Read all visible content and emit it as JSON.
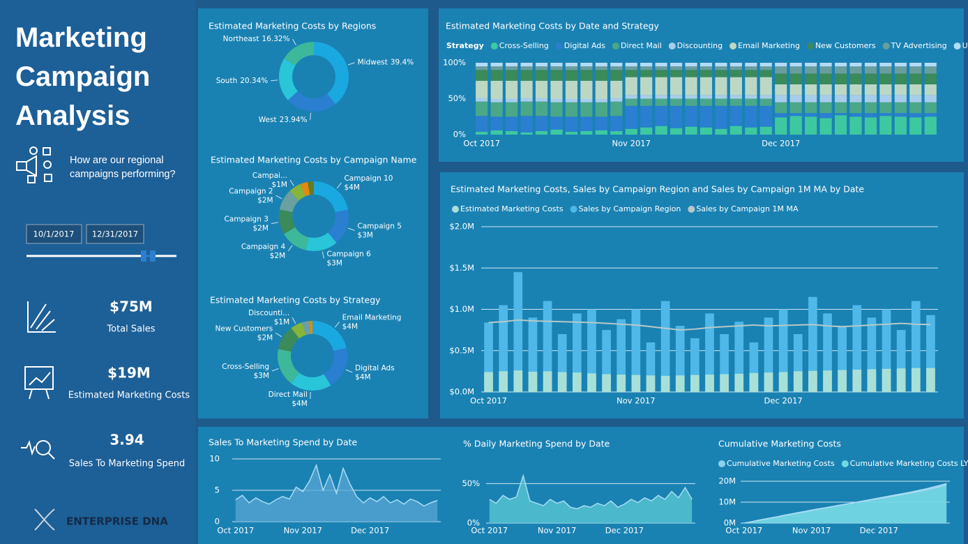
{
  "sidebar": {
    "title": "Marketing Campaign Analysis",
    "question": "How are our regional campaigns performing?",
    "date_range": [
      "10/1/2017",
      "12/31/2017"
    ],
    "kpis": [
      {
        "value": "$75M",
        "label": "Total Sales"
      },
      {
        "value": "$19M",
        "label": "Estimated Marketing Costs"
      },
      {
        "value": "3.94",
        "label": "Sales To Marketing Spend"
      }
    ],
    "logo": "ENTERPRISE DNA"
  },
  "chart_data": [
    {
      "type": "pie",
      "donut": true,
      "title": "Estimated Marketing Costs by Regions",
      "categories": [
        "Midwest",
        "West",
        "South",
        "Northeast"
      ],
      "values": [
        39.4,
        23.94,
        20.34,
        16.32
      ],
      "value_labels": [
        "39.4%",
        "23.94%",
        "20.34%",
        "16.32%"
      ],
      "colors": [
        "#1aa8e0",
        "#2a7fd0",
        "#29c5d8",
        "#3db89a"
      ]
    },
    {
      "type": "pie",
      "donut": true,
      "title": "Estimated Marketing Costs by Campaign Name",
      "categories": [
        "Campaign 10",
        "Campaign 5",
        "Campaign 6",
        "Campaign 4",
        "Campaign 3",
        "Campaign 2",
        "Campai...",
        null,
        null
      ],
      "values": [
        3800000,
        2900000,
        2600000,
        2200000,
        2000000,
        1700000,
        1000000,
        600000,
        500000
      ],
      "value_labels": [
        "$4M",
        "$3M",
        "$3M",
        "$2M",
        "$2M",
        "$2M",
        "$1M",
        null,
        null
      ],
      "colors": [
        "#1aa8e0",
        "#2a7fd0",
        "#29c5d8",
        "#3db89a",
        "#3a8a5a",
        "#6aa0a0",
        "#86b53a",
        "#e08a10",
        "#6a7a20"
      ]
    },
    {
      "type": "pie",
      "donut": true,
      "title": "Estimated Marketing Costs by Strategy",
      "categories": [
        "Email Marketing",
        "Digital Ads",
        "Direct Mail",
        "Cross-Selling",
        "New Customers",
        "Discounti...",
        null,
        null
      ],
      "values": [
        3900000,
        3600000,
        3500000,
        3200000,
        2100000,
        1000000,
        600000,
        300000
      ],
      "value_labels": [
        "$4M",
        "$4M",
        "$4M",
        "$3M",
        "$2M",
        "$1M",
        null,
        null
      ],
      "colors": [
        "#1aa8e0",
        "#2a7fd0",
        "#29c5d8",
        "#3db89a",
        "#3a8a5a",
        "#86b53a",
        "#6aa0a0",
        "#e08a10"
      ]
    },
    {
      "type": "bar",
      "stacked": "percent",
      "title": "Estimated Marketing Costs by Date and Strategy",
      "legend_title": "Strategy",
      "categories": [
        "Oct 2017",
        null,
        null,
        null,
        null,
        null,
        null,
        null,
        null,
        null,
        "Nov 2017",
        null,
        null,
        null,
        null,
        null,
        null,
        null,
        null,
        null,
        "Dec 2017",
        null,
        null,
        null,
        null,
        null,
        null,
        null,
        null,
        null,
        null
      ],
      "ylim": [
        0,
        100
      ],
      "yticks": [
        {
          "value": 0,
          "label": "0%"
        },
        {
          "value": 50,
          "label": "50%"
        },
        {
          "value": 100,
          "label": "100%"
        }
      ],
      "grid": false,
      "series": [
        {
          "name": "Cross-Selling",
          "color": "#3ec8a0",
          "values": [
            4,
            6,
            5,
            3,
            5,
            7,
            4,
            5,
            6,
            5,
            8,
            10,
            12,
            9,
            11,
            10,
            8,
            12,
            10,
            11,
            24,
            26,
            25,
            23,
            27,
            25,
            24,
            26,
            25,
            24,
            25
          ]
        },
        {
          "name": "Digital Ads",
          "color": "#2a7fd0",
          "values": [
            22,
            19,
            20,
            23,
            21,
            18,
            21,
            20,
            19,
            21,
            32,
            30,
            28,
            31,
            29,
            30,
            32,
            28,
            30,
            29,
            6,
            4,
            5,
            7,
            3,
            5,
            6,
            4,
            5,
            6,
            5
          ]
        },
        {
          "name": "Direct Mail",
          "color": "#4aa888",
          "values": [
            20,
            20,
            20,
            20,
            20,
            20,
            20,
            20,
            20,
            20,
            10,
            10,
            10,
            10,
            10,
            10,
            10,
            10,
            10,
            10,
            15,
            15,
            15,
            15,
            15,
            15,
            15,
            15,
            15,
            15,
            15
          ]
        },
        {
          "name": "Discounting",
          "color": "#a8cdea",
          "values": [
            5,
            5,
            5,
            5,
            5,
            5,
            5,
            5,
            5,
            5,
            5,
            5,
            5,
            5,
            5,
            5,
            5,
            5,
            5,
            5,
            10,
            10,
            10,
            10,
            10,
            10,
            10,
            10,
            10,
            10,
            10
          ]
        },
        {
          "name": "Email Marketing",
          "color": "#bcd8c4",
          "values": [
            24,
            25,
            25,
            24,
            24,
            25,
            25,
            25,
            25,
            24,
            25,
            25,
            25,
            25,
            25,
            25,
            25,
            25,
            25,
            25,
            15,
            15,
            15,
            15,
            15,
            15,
            15,
            15,
            15,
            15,
            15
          ]
        },
        {
          "name": "New Customers",
          "color": "#3a8a5a",
          "values": [
            15,
            15,
            15,
            15,
            15,
            15,
            15,
            15,
            15,
            15,
            10,
            10,
            10,
            10,
            10,
            10,
            10,
            10,
            10,
            10,
            15,
            15,
            15,
            15,
            15,
            15,
            15,
            15,
            15,
            15,
            15
          ]
        },
        {
          "name": "TV Advertising",
          "color": "#6a9e9e",
          "values": [
            5,
            5,
            5,
            5,
            5,
            5,
            5,
            5,
            5,
            5,
            5,
            5,
            5,
            5,
            5,
            5,
            5,
            5,
            5,
            5,
            10,
            10,
            10,
            10,
            10,
            10,
            10,
            10,
            10,
            10,
            10
          ]
        },
        {
          "name": "Up-Selling",
          "color": "#b4dcf8",
          "values": [
            5,
            5,
            5,
            5,
            5,
            5,
            5,
            5,
            5,
            5,
            5,
            5,
            5,
            5,
            5,
            5,
            5,
            5,
            5,
            5,
            5,
            5,
            5,
            5,
            5,
            5,
            5,
            5,
            5,
            5,
            5
          ]
        }
      ]
    },
    {
      "type": "combo",
      "title": "Estimated Marketing Costs, Sales by Campaign Region and Sales by Campaign 1M MA by Date",
      "categories": [
        "Oct 2017",
        null,
        null,
        null,
        null,
        null,
        null,
        null,
        null,
        null,
        "Nov 2017",
        null,
        null,
        null,
        null,
        null,
        null,
        null,
        null,
        null,
        "Dec 2017",
        null,
        null,
        null,
        null,
        null,
        null,
        null,
        null,
        null,
        null
      ],
      "ylim": [
        0,
        2000000
      ],
      "yticks": [
        {
          "value": 0,
          "label": "$0.0M"
        },
        {
          "value": 500000,
          "label": "$0.5M"
        },
        {
          "value": 1000000,
          "label": "$1.0M"
        },
        {
          "value": 1500000,
          "label": "$1.5M"
        },
        {
          "value": 2000000,
          "label": "$2.0M"
        }
      ],
      "grid": true,
      "series": [
        {
          "name": "Estimated Marketing Costs",
          "color": "#a8e0d8",
          "mark": "bar",
          "values": [
            240000,
            250000,
            260000,
            245000,
            250000,
            240000,
            235000,
            225000,
            215000,
            210000,
            205000,
            200000,
            195000,
            200000,
            205000,
            210000,
            215000,
            220000,
            230000,
            235000,
            240000,
            250000,
            255000,
            260000,
            265000,
            270000,
            275000,
            280000,
            285000,
            290000,
            290000
          ]
        },
        {
          "name": "Sales by Campaign Region",
          "color": "#4fb8e8",
          "mark": "bar",
          "values": [
            840000,
            1050000,
            1450000,
            900000,
            1100000,
            700000,
            950000,
            1000000,
            750000,
            880000,
            1000000,
            600000,
            1100000,
            800000,
            650000,
            950000,
            700000,
            850000,
            600000,
            900000,
            1000000,
            700000,
            1150000,
            950000,
            800000,
            1050000,
            900000,
            1000000,
            750000,
            1100000,
            930000
          ]
        },
        {
          "name": "Sales by Campaign 1M MA",
          "color": "#b8c8c8",
          "mark": "line",
          "values": [
            840000,
            850000,
            870000,
            860000,
            855000,
            850000,
            845000,
            840000,
            830000,
            820000,
            810000,
            790000,
            770000,
            750000,
            760000,
            780000,
            790000,
            800000,
            810000,
            800000,
            805000,
            810000,
            815000,
            800000,
            790000,
            800000,
            810000,
            820000,
            830000,
            820000,
            815000
          ]
        }
      ]
    },
    {
      "type": "area",
      "title": "Sales To Marketing Spend by Date",
      "color": "#5aa6d6",
      "categories": [
        "Oct 2017",
        null,
        null,
        null,
        null,
        null,
        null,
        null,
        null,
        null,
        "Nov 2017",
        null,
        null,
        null,
        null,
        null,
        null,
        null,
        null,
        null,
        "Dec 2017",
        null,
        null,
        null,
        null,
        null,
        null,
        null,
        null,
        null,
        null
      ],
      "ylim": [
        0,
        10
      ],
      "yticks": [
        0,
        5,
        10
      ],
      "grid": true,
      "values": [
        3.5,
        4.2,
        3.0,
        3.8,
        3.2,
        2.8,
        3.5,
        4.0,
        3.6,
        5.5,
        4.8,
        6.5,
        9.0,
        5.0,
        7.5,
        4.5,
        8.5,
        6.0,
        4.0,
        3.0,
        3.8,
        3.2,
        4.0,
        3.0,
        3.5,
        2.8,
        3.6,
        3.2,
        2.5,
        3.0,
        3.4
      ]
    },
    {
      "type": "area",
      "title": "% Daily Marketing Spend by Date",
      "color": "#5ccad4",
      "categories": [
        "Oct 2017",
        null,
        null,
        null,
        null,
        null,
        null,
        null,
        null,
        null,
        "Nov 2017",
        null,
        null,
        null,
        null,
        null,
        null,
        null,
        null,
        null,
        "Dec 2017",
        null,
        null,
        null,
        null,
        null,
        null,
        null,
        null,
        null,
        null
      ],
      "ylim": [
        0,
        60
      ],
      "yticks": [
        {
          "value": 0,
          "label": "0%"
        },
        {
          "value": 50,
          "label": "50%"
        }
      ],
      "grid": true,
      "values": [
        30,
        25,
        35,
        30,
        33,
        60,
        28,
        25,
        22,
        30,
        25,
        28,
        20,
        18,
        22,
        20,
        25,
        22,
        28,
        20,
        24,
        30,
        26,
        32,
        28,
        35,
        30,
        40,
        32,
        45,
        30
      ]
    },
    {
      "type": "area",
      "title": "Cumulative Marketing Costs",
      "categories": [
        "Oct 2017",
        null,
        null,
        null,
        null,
        null,
        null,
        null,
        null,
        null,
        "Nov 2017",
        null,
        null,
        null,
        null,
        null,
        null,
        null,
        null,
        null,
        "Dec 2017",
        null,
        null,
        null,
        null,
        null,
        null,
        null,
        null,
        null,
        null
      ],
      "ylim": [
        0,
        20000000
      ],
      "yticks": [
        {
          "value": 0,
          "label": "0M"
        },
        {
          "value": 10000000,
          "label": "10M"
        },
        {
          "value": 20000000,
          "label": "20M"
        }
      ],
      "grid": true,
      "series": [
        {
          "name": "Cumulative Marketing Costs",
          "color": "#8fd0ec",
          "values": [
            0,
            600000,
            1300000,
            1900000,
            2500000,
            3100000,
            3800000,
            4400000,
            5000000,
            5600000,
            6200000,
            6800000,
            7300000,
            7900000,
            8500000,
            9000000,
            9600000,
            10200000,
            10800000,
            11400000,
            12000000,
            12600000,
            13200000,
            13800000,
            14400000,
            15000000,
            15700000,
            16400000,
            17200000,
            18000000,
            18900000
          ]
        },
        {
          "name": "Cumulative Marketing Costs LY",
          "color": "#6fdae2",
          "values": [
            0,
            500000,
            1200000,
            1800000,
            2400000,
            3000000,
            3600000,
            4200000,
            4800000,
            5400000,
            6000000,
            6600000,
            7200000,
            7800000,
            8400000,
            9000000,
            9500000,
            10100000,
            10600000,
            11200000,
            11700000,
            12300000,
            12800000,
            13400000,
            14000000,
            14600000,
            15200000,
            15900000,
            16600000,
            17400000,
            18300000
          ]
        }
      ]
    }
  ]
}
